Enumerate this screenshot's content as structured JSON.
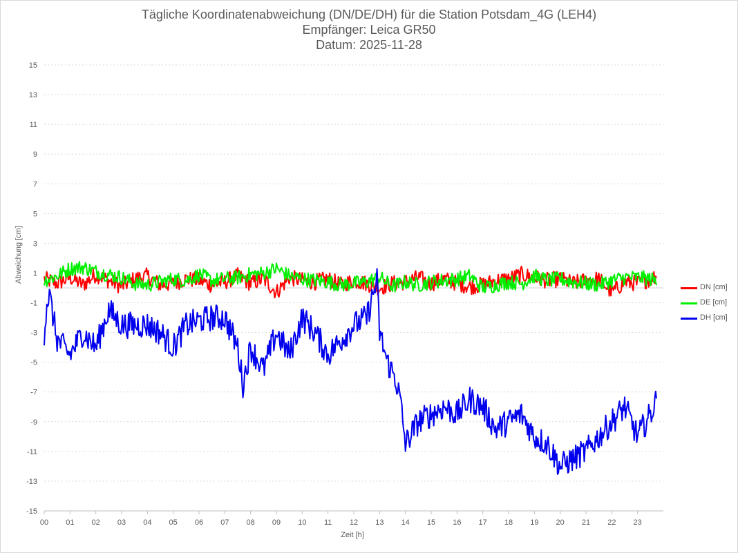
{
  "title": {
    "line1": "Tägliche Koordinatenabweichung (DN/DE/DH) für die Station Potsdam_4G (LEH4)",
    "line2": "Empfänger: Leica GR50",
    "line3": "Datum: 2025-11-28"
  },
  "chart_data": {
    "type": "line",
    "xlabel": "Zeit [h]",
    "ylabel": "Abweichung [cm]",
    "xlim": [
      0,
      24
    ],
    "ylim": [
      -15,
      15
    ],
    "yticks": [
      "15",
      "13",
      "11",
      "9",
      "7",
      "5",
      "3",
      "1",
      "-1",
      "-3",
      "-5",
      "-7",
      "-9",
      "-11",
      "-13",
      "-15"
    ],
    "xticks": [
      "00",
      "01",
      "02",
      "03",
      "04",
      "05",
      "06",
      "07",
      "08",
      "09",
      "10",
      "11",
      "12",
      "13",
      "14",
      "15",
      "16",
      "17",
      "18",
      "19",
      "20",
      "21",
      "22",
      "23"
    ],
    "grid": true,
    "legend_position": "right",
    "series": [
      {
        "name": "DN [cm]",
        "color": "#ff0000",
        "x": [
          0,
          0.5,
          1,
          1.5,
          2,
          2.5,
          3,
          3.5,
          4,
          4.5,
          5,
          5.5,
          6,
          6.5,
          7,
          7.5,
          8,
          8.5,
          9,
          9.5,
          10,
          10.5,
          11,
          11.5,
          12,
          12.5,
          13,
          13.5,
          14,
          14.5,
          15,
          15.5,
          16,
          16.5,
          17,
          17.5,
          18,
          18.5,
          19,
          19.5,
          20,
          20.5,
          21,
          21.5,
          22,
          22.5,
          23,
          23.5,
          23.75
        ],
        "values": [
          0.6,
          0.3,
          0.7,
          0.2,
          0.9,
          0.5,
          0.1,
          0.6,
          0.8,
          0.2,
          0.3,
          0.6,
          0.5,
          0.2,
          0.4,
          0.8,
          0.3,
          0.6,
          -0.3,
          0.7,
          0.5,
          0.4,
          0.6,
          0.2,
          0.5,
          0.3,
          0.0,
          0.3,
          0.4,
          0.7,
          0.3,
          0.6,
          0.3,
          0.1,
          0.2,
          0.5,
          0.6,
          0.9,
          0.7,
          0.5,
          0.6,
          0.3,
          0.5,
          0.6,
          -0.3,
          0.4,
          0.3,
          0.6,
          0.8
        ]
      },
      {
        "name": "DE [cm]",
        "color": "#00ee00",
        "x": [
          0,
          0.5,
          1,
          1.5,
          2,
          2.5,
          3,
          3.5,
          4,
          4.5,
          5,
          5.5,
          6,
          6.5,
          7,
          7.5,
          8,
          8.5,
          9,
          9.5,
          10,
          10.5,
          11,
          11.5,
          12,
          12.5,
          13,
          13.5,
          14,
          14.5,
          15,
          15.5,
          16,
          16.5,
          17,
          17.5,
          18,
          18.5,
          19,
          19.5,
          20,
          20.5,
          21,
          21.5,
          22,
          22.5,
          23,
          23.5,
          23.75
        ],
        "values": [
          0.5,
          0.8,
          1.3,
          1.4,
          1.1,
          0.9,
          0.7,
          0.3,
          0.2,
          0.4,
          0.6,
          0.5,
          0.9,
          0.5,
          0.6,
          0.7,
          0.9,
          1.0,
          1.3,
          0.8,
          0.6,
          0.5,
          0.4,
          0.2,
          0.3,
          0.4,
          0.7,
          0.1,
          0.4,
          0.2,
          0.4,
          0.5,
          0.6,
          0.8,
          0.0,
          0.2,
          0.4,
          0.3,
          0.8,
          0.5,
          0.6,
          0.4,
          0.3,
          0.2,
          0.5,
          0.7,
          0.7,
          0.6,
          0.4
        ]
      },
      {
        "name": "DH [cm]",
        "color": "#0000ee",
        "x": [
          0,
          0.1,
          0.2,
          0.5,
          1,
          1.5,
          2,
          2.5,
          3,
          3.5,
          4,
          4.5,
          5,
          5.5,
          6,
          6.5,
          7,
          7.5,
          7.7,
          8,
          8.5,
          9,
          9.5,
          10,
          10.5,
          11,
          11.5,
          12,
          12.5,
          12.9,
          13,
          13.3,
          13.6,
          13.8,
          14,
          14.5,
          15,
          15.5,
          16,
          16.5,
          17,
          17.5,
          18,
          18.5,
          19,
          19.5,
          20,
          20.5,
          21,
          21.5,
          22,
          22.5,
          23,
          23.5,
          23.75
        ],
        "values": [
          -3.0,
          -1.0,
          -0.5,
          -3.5,
          -4.5,
          -3.0,
          -4.0,
          -1.5,
          -2.5,
          -2.5,
          -2.5,
          -3.0,
          -4.0,
          -2.5,
          -2.2,
          -2.0,
          -2.0,
          -4.0,
          -6.5,
          -4.0,
          -5.5,
          -3.0,
          -4.5,
          -2.0,
          -3.0,
          -4.5,
          -3.5,
          -2.5,
          -2.0,
          0.5,
          -3.0,
          -5.0,
          -6.0,
          -7.5,
          -10.5,
          -9.0,
          -8.5,
          -8.0,
          -8.5,
          -7.5,
          -8.0,
          -9.5,
          -9.0,
          -8.5,
          -10.0,
          -10.5,
          -12.0,
          -11.5,
          -11.0,
          -10.0,
          -9.0,
          -8.0,
          -10.0,
          -8.5,
          -7.5
        ]
      }
    ]
  }
}
